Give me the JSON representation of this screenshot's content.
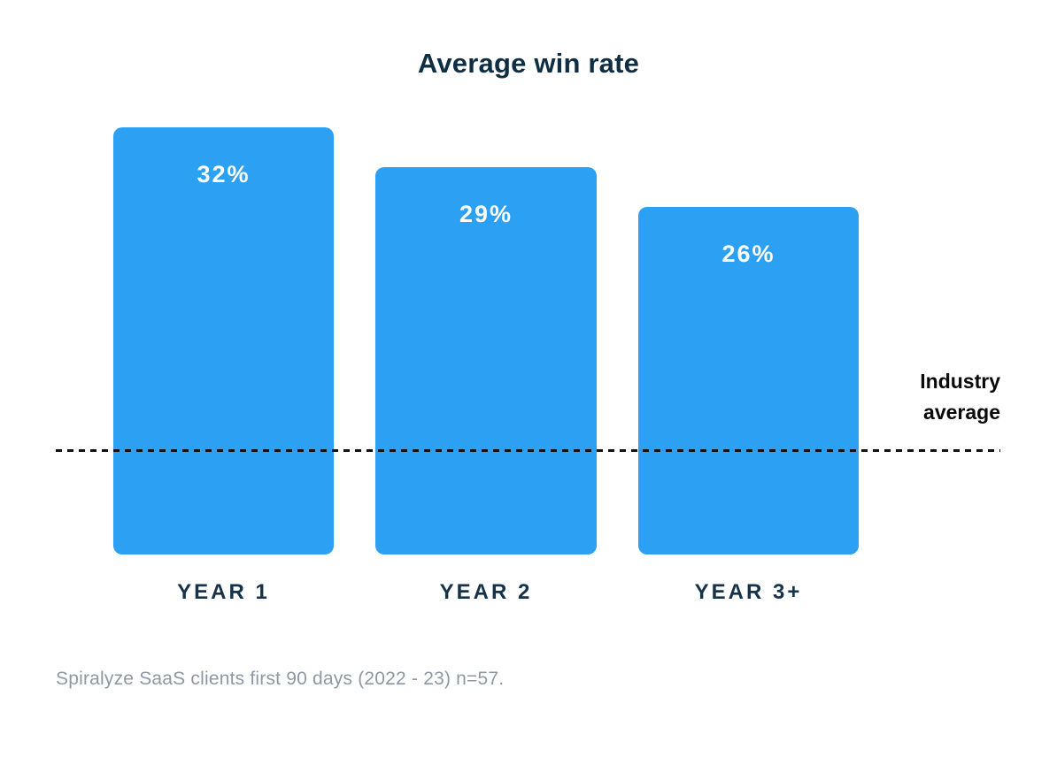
{
  "chart_data": {
    "type": "bar",
    "title": "Average win rate",
    "categories": [
      "YEAR 1",
      "YEAR 2",
      "YEAR 3+"
    ],
    "values": [
      32,
      29,
      26
    ],
    "unit": "%",
    "value_labels": [
      "32%",
      "29%",
      "26%"
    ],
    "reference_line": {
      "label": "Industry average",
      "value_pct_estimated": 7.9
    },
    "source_note": "Spiralyze SaaS clients first 90 days (2022 - 23) n=57.",
    "xlabel": "",
    "ylabel": "",
    "ylim": [
      0,
      34
    ],
    "grid": false,
    "legend_position": "none",
    "colors": {
      "bar": "#2ca0f2",
      "value_label": "#ffffff",
      "title": "#0f2e44",
      "category_label": "#15324a",
      "reference_line": "#111111",
      "reference_label": "#0a0a0a",
      "source_note": "#8e98a4"
    }
  }
}
